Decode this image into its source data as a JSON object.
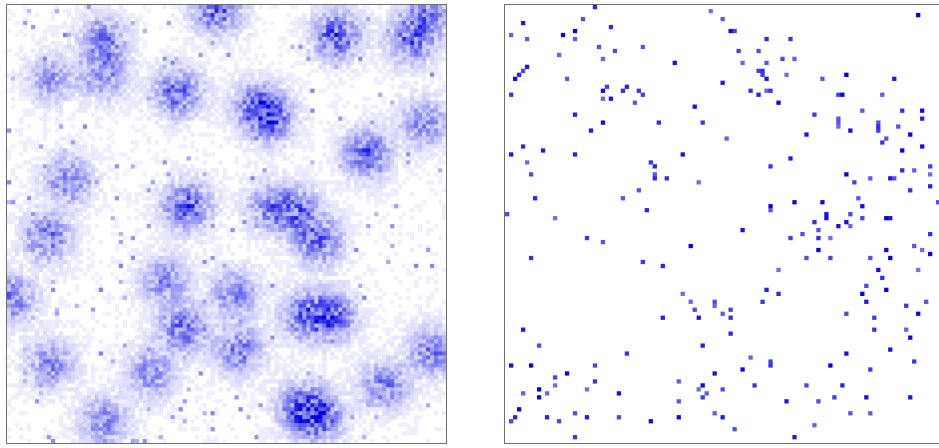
{
  "chart_data": [
    {
      "type": "heatmap",
      "title": "",
      "xlabel": "",
      "ylabel": "",
      "grid": false,
      "legend": "none",
      "colormap": [
        "#ffffff",
        "#0000e0"
      ],
      "rows": 110,
      "cols": 110,
      "value_range": [
        0,
        1
      ],
      "pattern": "diffuse",
      "clusters": [
        [
          0.48,
          0.01,
          0.9
        ],
        [
          0.75,
          0.07,
          0.95
        ],
        [
          0.92,
          0.08,
          0.8
        ],
        [
          0.96,
          0.02,
          0.6
        ],
        [
          0.22,
          0.08,
          0.65
        ],
        [
          0.1,
          0.17,
          0.5
        ],
        [
          0.22,
          0.16,
          0.6
        ],
        [
          0.39,
          0.2,
          0.85
        ],
        [
          0.57,
          0.23,
          0.7
        ],
        [
          0.6,
          0.26,
          0.8
        ],
        [
          0.82,
          0.34,
          0.85
        ],
        [
          0.95,
          0.27,
          0.6
        ],
        [
          0.14,
          0.4,
          0.65
        ],
        [
          0.41,
          0.46,
          0.95
        ],
        [
          0.6,
          0.46,
          0.6
        ],
        [
          0.66,
          0.47,
          0.7
        ],
        [
          0.09,
          0.53,
          0.75
        ],
        [
          0.71,
          0.54,
          0.8
        ],
        [
          0.36,
          0.63,
          0.6
        ],
        [
          0.52,
          0.66,
          0.6
        ],
        [
          0.68,
          0.71,
          0.75
        ],
        [
          0.74,
          0.71,
          0.85
        ],
        [
          0.01,
          0.67,
          0.7
        ],
        [
          0.4,
          0.74,
          0.8
        ],
        [
          0.53,
          0.79,
          0.7
        ],
        [
          0.1,
          0.82,
          0.6
        ],
        [
          0.33,
          0.84,
          0.6
        ],
        [
          0.86,
          0.87,
          0.7
        ],
        [
          0.67,
          0.92,
          0.8
        ],
        [
          0.71,
          0.94,
          0.9
        ],
        [
          0.22,
          0.95,
          0.6
        ],
        [
          0.97,
          0.79,
          0.7
        ]
      ]
    },
    {
      "type": "heatmap",
      "title": "",
      "xlabel": "",
      "ylabel": "",
      "grid": false,
      "legend": "none",
      "colormap": [
        "#ffffff",
        "#0000e0"
      ],
      "rows": 110,
      "cols": 110,
      "value_range": [
        0,
        1
      ],
      "pattern": "sparse",
      "clusters": [
        [
          0.2,
          0.06,
          0.6
        ],
        [
          0.45,
          0.1,
          0.5
        ],
        [
          0.6,
          0.18,
          0.6
        ],
        [
          0.75,
          0.2,
          0.7
        ],
        [
          0.3,
          0.25,
          0.5
        ],
        [
          0.9,
          0.3,
          0.8
        ],
        [
          0.95,
          0.4,
          0.85
        ],
        [
          0.7,
          0.5,
          0.9
        ],
        [
          0.85,
          0.55,
          0.8
        ],
        [
          0.55,
          0.68,
          0.7
        ],
        [
          0.1,
          0.8,
          0.6
        ],
        [
          0.9,
          0.7,
          0.7
        ],
        [
          0.3,
          0.4,
          0.4
        ],
        [
          0.05,
          0.15,
          0.5
        ],
        [
          0.45,
          0.9,
          0.5
        ],
        [
          0.8,
          0.92,
          0.6
        ]
      ]
    }
  ]
}
